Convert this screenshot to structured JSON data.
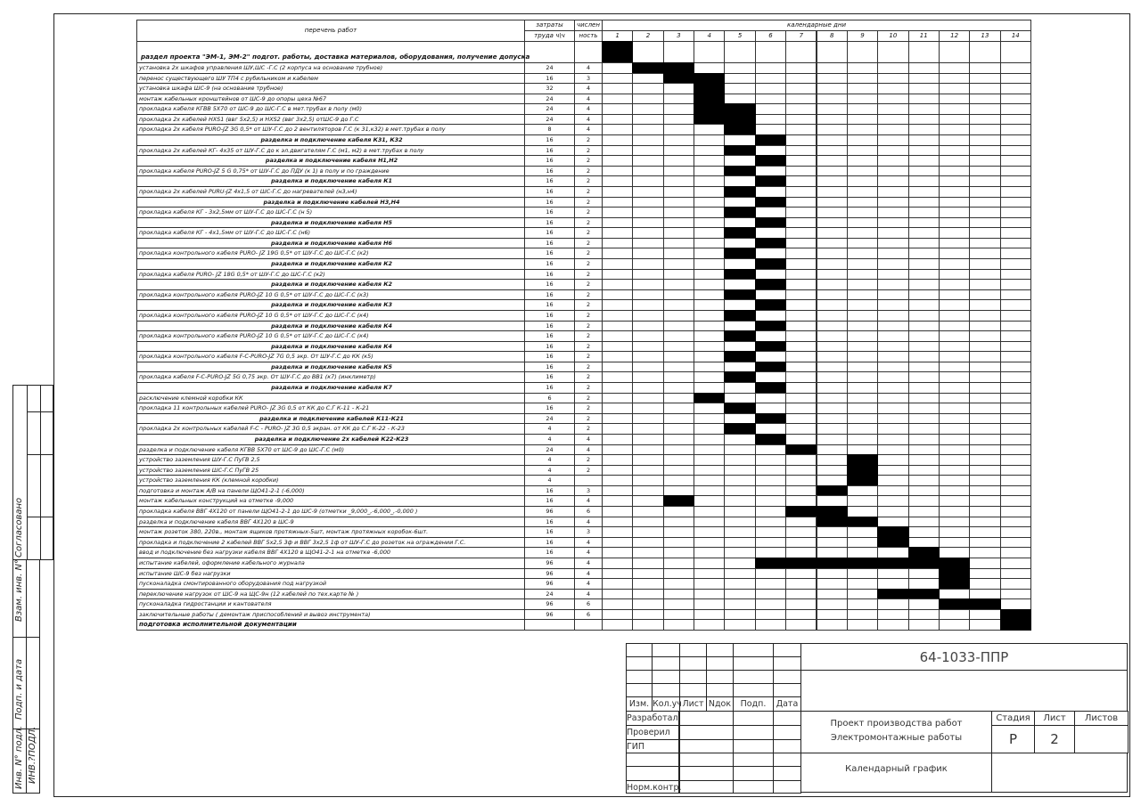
{
  "header": {
    "works_title": "перечень работ",
    "labor_title": [
      "затраты",
      "труда ч\\ч"
    ],
    "workers_title": [
      "числен",
      "ность"
    ],
    "days_title": "календарные дни",
    "days": [
      "1",
      "2",
      "3",
      "4",
      "5",
      "6",
      "7",
      "8",
      "9",
      "10",
      "11",
      "12",
      "13",
      "14"
    ]
  },
  "section": {
    "text": "раздел проекта \"ЭМ-1, ЭМ-2\"  подгот. работы, доставка материалов, оборудования, получение допуска",
    "days": [
      1,
      1
    ]
  },
  "tasks": [
    {
      "text": "установка  2х  шкафов управления ШУ,ШС -Г.С                           (2 корпуса на основание трубное)",
      "labor": "24",
      "workers": "4",
      "days": [
        2,
        3
      ]
    },
    {
      "text": "перенос существующего ШУ ТП4 с рубильником и кабелем",
      "labor": "16",
      "workers": "3",
      "days": [
        3,
        4
      ]
    },
    {
      "text": "установка шкафа ШС-9 (на основание трубное)",
      "labor": "32",
      "workers": "4",
      "days": [
        4,
        4
      ]
    },
    {
      "text": "монтаж кабельных кронштейнов от ШС-9 до опоры цеха №67",
      "labor": "24",
      "workers": "4",
      "days": [
        4,
        4
      ]
    },
    {
      "text": "прокладка кабеля КГВВ 5Х70 от ШС-9 до ШС-Г.С в мет.трубах в полу (м0)",
      "labor": "24",
      "workers": "4",
      "days": [
        4,
        5
      ]
    },
    {
      "text": "прокладка 2х кабелей HXS1 (ввг 5х2,5) и HXS2 (ввг 3х2,5) отШС-9 до Г.С",
      "labor": "24",
      "workers": "4",
      "days": [
        4,
        5
      ]
    },
    {
      "text": "прокладка 2х кабеля  PURO-JZ 3G 0,5*   от ШУ-Г.С до 2 вентиляторов Г.С (к 31,к32) в мет.трубах в полу",
      "labor": "8",
      "workers": "4",
      "days": [
        5,
        5
      ]
    },
    {
      "text": "разделка и  подключение кабеля К31, К32",
      "labor": "16",
      "workers": "2",
      "days": [
        6,
        6
      ],
      "emph": true
    },
    {
      "text": "прокладка 2х кабелей КГ-  4х35    от ШУ-Г.С до к эл.двигателям Г.С (м1, м2) в мет.трубах в полу",
      "labor": "16",
      "workers": "2",
      "days": [
        5,
        5
      ]
    },
    {
      "text": "разделка и подключение кабеля Н1,Н2",
      "labor": "16",
      "workers": "2",
      "days": [
        6,
        6
      ],
      "emph": true
    },
    {
      "text": "прокладка кабеля  PURO-JZ 5 G 0,75*  от ШУ-Г.С  до ПДУ (к 1) в полу и по граждение",
      "labor": "16",
      "workers": "2",
      "days": [
        5,
        5
      ]
    },
    {
      "text": "разделка и подключение кабеля К1",
      "labor": "16",
      "workers": "2",
      "days": [
        6,
        6
      ],
      "emph": true
    },
    {
      "text": "прокладка 2х кабелей PURU-JZ 4х1,5  от ШС-Г.С до нагревателей (н3,н4)",
      "labor": "16",
      "workers": "2",
      "days": [
        5,
        5
      ]
    },
    {
      "text": "разделка и подключение кабелей Н3,Н4",
      "labor": "16",
      "workers": "2",
      "days": [
        6,
        6
      ],
      "emph": true
    },
    {
      "text": "прокладка кабеля  КГ - 3х2,5мм    от ШУ-Г.С  до ШС-Г.С (н 5)",
      "labor": "16",
      "workers": "2",
      "days": [
        5,
        5
      ]
    },
    {
      "text": "разделка и подключение кабеля Н5",
      "labor": "16",
      "workers": "2",
      "days": [
        6,
        6
      ],
      "emph": true
    },
    {
      "text": "прокладка кабеля  КГ - 4х1,5мм    от ШУ-Г.С  до ШС-Г.С  (н6)",
      "labor": "16",
      "workers": "2",
      "days": [
        5,
        5
      ]
    },
    {
      "text": "разделка и подключение кабеля Н6",
      "labor": "16",
      "workers": "2",
      "days": [
        6,
        6
      ],
      "emph": true
    },
    {
      "text": "прокладка контрольного  кабеля PURO- JZ 19G 0,5*  от ШУ-Г.С      до ШС-Г.С (к2)",
      "labor": "16",
      "workers": "2",
      "days": [
        5,
        5
      ]
    },
    {
      "text": "разделка и подключение кабеля К2",
      "labor": "16",
      "workers": "2",
      "days": [
        6,
        6
      ],
      "emph": true
    },
    {
      "text": "прокладка кабеля PURO- JZ 18G 0,5*  от ШУ-Г.С      до ШС-Г.С (к2)",
      "labor": "16",
      "workers": "2",
      "days": [
        5,
        5
      ]
    },
    {
      "text": "разделка и подключение кабеля К2",
      "labor": "16",
      "workers": "2",
      "days": [
        6,
        6
      ],
      "emph": true
    },
    {
      "text": "прокладка контрольного кабеля PURO-JZ 10 G 0,5*  от ШУ-Г.С      до ШС-Г.С (к3)",
      "labor": "16",
      "workers": "2",
      "days": [
        5,
        5
      ]
    },
    {
      "text": "разделка и подключение кабеля К3",
      "labor": "16",
      "workers": "2",
      "days": [
        6,
        6
      ],
      "emph": true
    },
    {
      "text": "прокладка  контрольного кабеля PURO-JZ 10 G 0,5*  от ШУ-Г.С      до ШС-Г.С (к4)",
      "labor": "16",
      "workers": "2",
      "days": [
        5,
        5
      ]
    },
    {
      "text": "разделка и подключение кабеля К4",
      "labor": "16",
      "workers": "2",
      "days": [
        6,
        6
      ],
      "emph": true
    },
    {
      "text": "прокладка  контрольного кабеля PURO-JZ 10 G 0,5*  от ШУ-Г.С      до ШС-Г.С (к4)",
      "labor": "16",
      "workers": "2",
      "days": [
        5,
        5
      ]
    },
    {
      "text": "разделка и подключение кабеля К4",
      "labor": "16",
      "workers": "2",
      "days": [
        6,
        6
      ],
      "emph": true
    },
    {
      "text": "прокладка контрольного кабеля F-C-PURO-JZ 7G 0,5 экр. От ШУ-Г.С до КК (к5)",
      "labor": "16",
      "workers": "2",
      "days": [
        5,
        5
      ]
    },
    {
      "text": "разделка и подключение кабеля К5",
      "labor": "16",
      "workers": "2",
      "days": [
        6,
        6
      ],
      "emph": true
    },
    {
      "text": "прокладка кабеля F-C-PURO-JZ 5G 0,75 экр. От ШУ-Г.С до ВВ1 (к7) (инклиметр)",
      "labor": "16",
      "workers": "2",
      "days": [
        5,
        5
      ]
    },
    {
      "text": "разделка и подключение кабеля К7",
      "labor": "16",
      "workers": "2",
      "days": [
        6,
        6
      ],
      "emph": true
    },
    {
      "text": "расключение клемной коробки КК",
      "labor": "6",
      "workers": "2",
      "days": [
        4,
        4
      ]
    },
    {
      "text": "прокладка 11 контрольных кабелей PURO- JZ 3G 0,5 от КК до С.Г   К-11 - К-21",
      "labor": "16",
      "workers": "2",
      "days": [
        5,
        5
      ]
    },
    {
      "text": "разделка и подключение  кабелей  К11-К21",
      "labor": "24",
      "workers": "2",
      "days": [
        6,
        6
      ],
      "emph": true
    },
    {
      "text": "прокладка 2х контрольных кабелей F-C - PURO- JZ 3G 0,5 экран. от КК до С.Г   К-22 - К-23",
      "labor": "4",
      "workers": "2",
      "days": [
        5,
        5
      ]
    },
    {
      "text": "разделка и подключение  2х кабелей  К22-К23",
      "labor": "4",
      "workers": "4",
      "days": [
        6,
        6
      ],
      "emph": true
    },
    {
      "text": "разделка и подключение кабеля КГВВ 5Х70 от ШС-9 до ШС-Г.С  (м0)",
      "labor": "24",
      "workers": "4",
      "days": [
        7,
        7
      ]
    },
    {
      "text": "устройство заземления ШУ-Г.С          ПуГВ 2,5",
      "labor": "4",
      "workers": "2",
      "days": [
        9,
        9
      ]
    },
    {
      "text": "устройство заземления ШС-Г.С          ПуГВ 25",
      "labor": "4",
      "workers": "2",
      "days": [
        9,
        9
      ]
    },
    {
      "text": "устройство заземления  КК  (клемной коробки)",
      "labor": "4",
      "workers": "",
      "days": [
        9,
        9
      ]
    },
    {
      "text": "подготовка и монтаж А/В на панели ЩО41-2-1 (-6,000)",
      "labor": "16",
      "workers": "3",
      "days": [
        8,
        8
      ]
    },
    {
      "text": "монтаж кабельных конструкций на отметке    -9,000",
      "labor": "16",
      "workers": "4",
      "days": [
        3,
        3
      ]
    },
    {
      "text": "прокладка кабеля ВВГ 4Х120 от панели ЩО41-2-1 до ШС-9 (отметки _9,000_,-6,000_,-0,000 )",
      "labor": "96",
      "workers": "6",
      "days": [
        7,
        8
      ]
    },
    {
      "text": "разделка и подключение кабеля ВВГ  4Х120 в ШС-9",
      "labor": "16",
      "workers": "4",
      "days": [
        8,
        9
      ]
    },
    {
      "text": "монтаж розеток 380, 220в., монтаж ящиков протяжных-5шт, монтаж протяжных коробок-6шт.",
      "labor": "16",
      "workers": "3",
      "days": [
        10,
        10
      ]
    },
    {
      "text": "прокладка и подключение 2 кабелей  ВВГ 5х2,5 3ф и ВВГ 3х2,5 1ф от ШУ-Г.С до розеток на ограждении Г.С.",
      "labor": "16",
      "workers": "4",
      "days": [
        10,
        10
      ]
    },
    {
      "text": "ввод и подключение без нагрузки кабеля ВВГ 4Х120 в ЩО41-2-1 на отметке -6,000",
      "labor": "16",
      "workers": "4",
      "days": [
        11,
        11
      ]
    },
    {
      "text": "испытание кабелей, оформление кабельного журнала",
      "labor": "96",
      "workers": "4",
      "days": [
        6,
        12
      ]
    },
    {
      "text": "испытание ШС-9 без нагрузки",
      "labor": "96",
      "workers": "4",
      "days": [
        12,
        12
      ]
    },
    {
      "text": "пусконаладка смонтированного оборудования под нагрузкой",
      "labor": "96",
      "workers": "4",
      "days": [
        12,
        12
      ]
    },
    {
      "text": "переключение нагрузок от ШС-9 на ЩС-9н (12 кабелей по тех.карте №          )",
      "labor": "24",
      "workers": "4",
      "days": [
        10,
        11
      ]
    },
    {
      "text": "пусконаладка гидростанции и кантователя",
      "labor": "96",
      "workers": "6",
      "days": [
        12,
        13
      ]
    },
    {
      "text": "заключительные работы  ( демонтаж приспособлений и вывоз инструмента)",
      "labor": "96",
      "workers": "6",
      "days": [
        14,
        14
      ]
    },
    {
      "text": "подготовка исполнительной документации",
      "labor": "",
      "workers": "",
      "days": [
        14,
        14
      ]
    }
  ],
  "title_block": {
    "doc_number": "64-1033-ППР",
    "rev_headers": [
      "Изм.",
      "Кол.уч",
      "Лист",
      "Nдок",
      "Подп.",
      "Дата"
    ],
    "roles": [
      "Разработал",
      "Проверил",
      "ГИП",
      "",
      "",
      "Норм.контр."
    ],
    "project": [
      "Проект производства работ",
      "Электромонтажные работы"
    ],
    "stage_label": "Стадия",
    "sheet_label": "Лист",
    "sheets_label": "Листов",
    "stage": "Р",
    "sheet": "2",
    "sheets": "",
    "drawing_title": "Календарный график"
  },
  "side_stamp": {
    "agreed": "Согласовано",
    "inv_replace": "Взам. инв. N°",
    "sign_date": "Подп. и дата",
    "inv_orig": "Инв. N° подл.",
    "inv_value": "ИНВ.?ПОДЛ."
  }
}
